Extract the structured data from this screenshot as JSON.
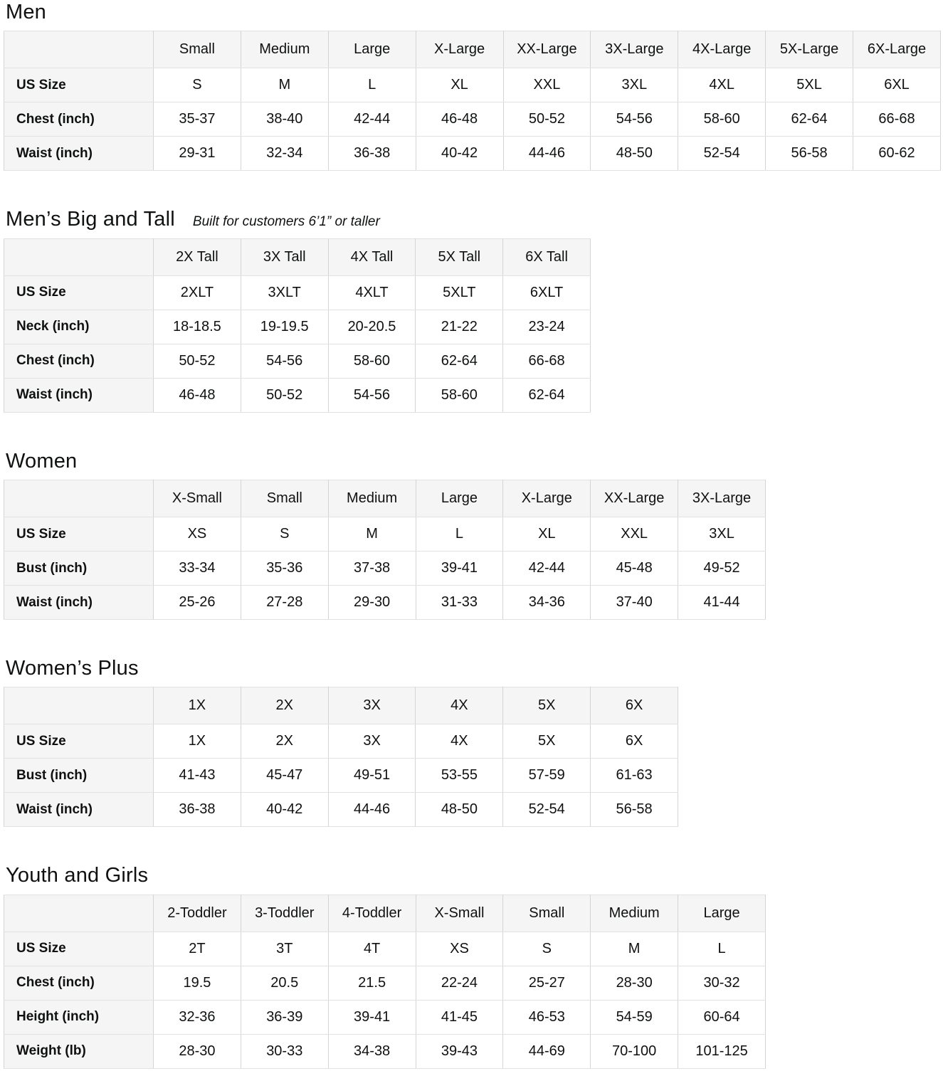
{
  "colors": {
    "text": "#0f1111",
    "header_background": "#f5f5f5",
    "border_vertical": "#d4d4d4",
    "border_horizontal": "#e2e2e2",
    "cell_background": "#ffffff"
  },
  "sections": [
    {
      "title": "Men",
      "subtitle": "",
      "columns": [
        "Small",
        "Medium",
        "Large",
        "X-Large",
        "XX-Large",
        "3X-Large",
        "4X-Large",
        "5X-Large",
        "6X-Large"
      ],
      "rows": [
        {
          "label": "US Size",
          "values": [
            "S",
            "M",
            "L",
            "XL",
            "XXL",
            "3XL",
            "4XL",
            "5XL",
            "6XL"
          ]
        },
        {
          "label": "Chest (inch)",
          "values": [
            "35-37",
            "38-40",
            "42-44",
            "46-48",
            "50-52",
            "54-56",
            "58-60",
            "62-64",
            "66-68"
          ]
        },
        {
          "label": "Waist (inch)",
          "values": [
            "29-31",
            "32-34",
            "36-38",
            "40-42",
            "44-46",
            "48-50",
            "52-54",
            "56-58",
            "60-62"
          ]
        }
      ]
    },
    {
      "title": "Men’s Big and Tall",
      "subtitle": "Built for customers 6’1” or taller",
      "columns": [
        "2X Tall",
        "3X Tall",
        "4X Tall",
        "5X Tall",
        "6X Tall"
      ],
      "rows": [
        {
          "label": "US Size",
          "values": [
            "2XLT",
            "3XLT",
            "4XLT",
            "5XLT",
            "6XLT"
          ]
        },
        {
          "label": "Neck (inch)",
          "values": [
            "18-18.5",
            "19-19.5",
            "20-20.5",
            "21-22",
            "23-24"
          ]
        },
        {
          "label": "Chest (inch)",
          "values": [
            "50-52",
            "54-56",
            "58-60",
            "62-64",
            "66-68"
          ]
        },
        {
          "label": "Waist (inch)",
          "values": [
            "46-48",
            "50-52",
            "54-56",
            "58-60",
            "62-64"
          ]
        }
      ]
    },
    {
      "title": "Women",
      "subtitle": "",
      "columns": [
        "X-Small",
        "Small",
        "Medium",
        "Large",
        "X-Large",
        "XX-Large",
        "3X-Large"
      ],
      "rows": [
        {
          "label": "US Size",
          "values": [
            "XS",
            "S",
            "M",
            "L",
            "XL",
            "XXL",
            "3XL"
          ]
        },
        {
          "label": "Bust (inch)",
          "values": [
            "33-34",
            "35-36",
            "37-38",
            "39-41",
            "42-44",
            "45-48",
            "49-52"
          ]
        },
        {
          "label": "Waist (inch)",
          "values": [
            "25-26",
            "27-28",
            "29-30",
            "31-33",
            "34-36",
            "37-40",
            "41-44"
          ]
        }
      ]
    },
    {
      "title": "Women’s  Plus",
      "subtitle": "",
      "columns": [
        "1X",
        "2X",
        "3X",
        "4X",
        "5X",
        "6X"
      ],
      "rows": [
        {
          "label": "US Size",
          "values": [
            "1X",
            "2X",
            "3X",
            "4X",
            "5X",
            "6X"
          ]
        },
        {
          "label": "Bust (inch)",
          "values": [
            "41-43",
            "45-47",
            "49-51",
            "53-55",
            "57-59",
            "61-63"
          ]
        },
        {
          "label": "Waist (inch)",
          "values": [
            "36-38",
            "40-42",
            "44-46",
            "48-50",
            "52-54",
            "56-58"
          ]
        }
      ]
    },
    {
      "title": "Youth and Girls",
      "subtitle": "",
      "columns": [
        "2-Toddler",
        "3-Toddler",
        "4-Toddler",
        "X-Small",
        "Small",
        "Medium",
        "Large"
      ],
      "rows": [
        {
          "label": "US Size",
          "values": [
            "2T",
            "3T",
            "4T",
            "XS",
            "S",
            "M",
            "L"
          ]
        },
        {
          "label": "Chest (inch)",
          "values": [
            "19.5",
            "20.5",
            "21.5",
            "22-24",
            "25-27",
            "28-30",
            "30-32"
          ]
        },
        {
          "label": "Height (inch)",
          "values": [
            "32-36",
            "36-39",
            "39-41",
            "41-45",
            "46-53",
            "54-59",
            "60-64"
          ]
        },
        {
          "label": "Weight (lb)",
          "values": [
            "28-30",
            "30-33",
            "34-38",
            "39-43",
            "44-69",
            "70-100",
            "101-125"
          ]
        }
      ]
    }
  ]
}
